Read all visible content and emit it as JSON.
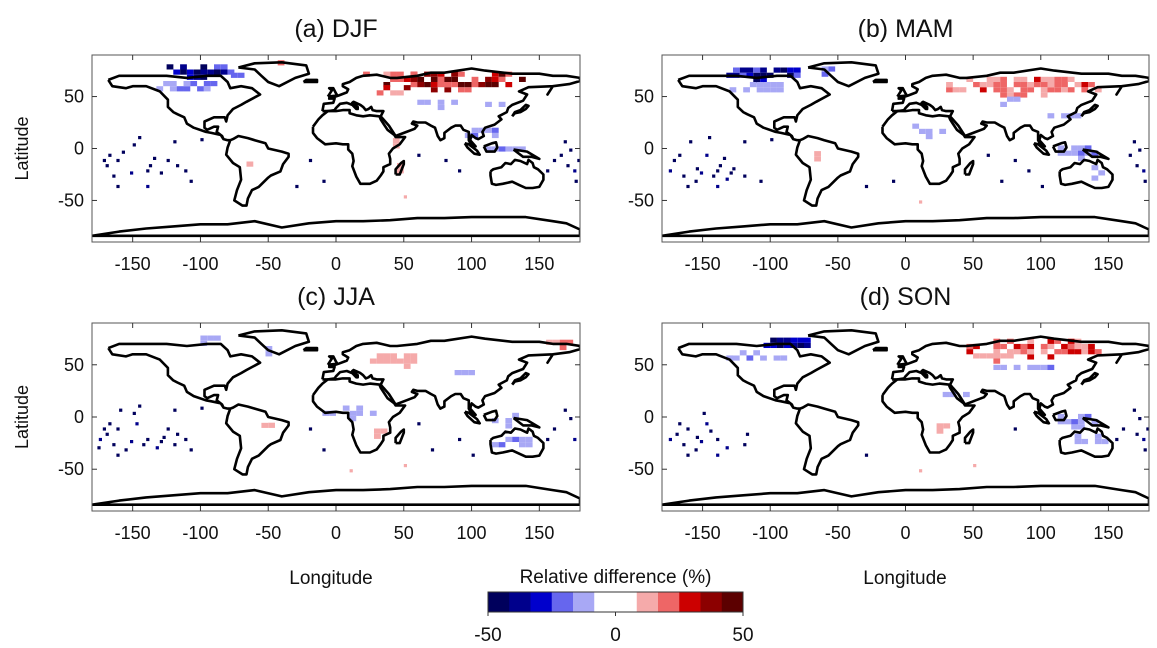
{
  "chart_data": {
    "type": "heatmap",
    "xlabel": "Longitude",
    "ylabel": "Latitude",
    "xlim": [
      -180,
      180
    ],
    "ylim": [
      -90,
      90
    ],
    "x_ticks": [
      -150,
      -100,
      -50,
      0,
      50,
      100,
      150
    ],
    "y_ticks": [
      -50,
      0,
      50
    ],
    "grid": false,
    "colorbar": {
      "title": "Relative difference (%)",
      "tick_labels": [
        "-50",
        "0",
        "50"
      ],
      "range": [
        -50,
        50
      ],
      "bins": 12,
      "colors": [
        "#00005c",
        "#00008c",
        "#0000cc",
        "#6666ee",
        "#a8a8f5",
        "#ffffff",
        "#ffffff",
        "#f5aaaa",
        "#ee6666",
        "#cc0000",
        "#8c0000",
        "#5c0000"
      ]
    },
    "panels": [
      {
        "title": "(a) DJF",
        "show_xlabel": false,
        "show_ylabel": true,
        "anomalies": [
          {
            "lon": -105,
            "lat": 72,
            "w": 60,
            "h": 12,
            "value": -45
          },
          {
            "lon": -75,
            "lat": 67,
            "w": 15,
            "h": 8,
            "value": -25
          },
          {
            "lon": -110,
            "lat": 56,
            "w": 45,
            "h": 12,
            "value": -18
          },
          {
            "lon": -90,
            "lat": 40,
            "w": 22,
            "h": 10,
            "value": -10
          },
          {
            "lon": -42,
            "lat": 78,
            "w": 12,
            "h": 6,
            "value": 25
          },
          {
            "lon": 85,
            "lat": 63,
            "w": 110,
            "h": 18,
            "value": 40
          },
          {
            "lon": 45,
            "lat": 52,
            "w": 30,
            "h": 12,
            "value": 32
          },
          {
            "lon": 40,
            "lat": 68,
            "w": 40,
            "h": 8,
            "value": 20
          },
          {
            "lon": 75,
            "lat": 42,
            "w": 30,
            "h": 10,
            "value": -12
          },
          {
            "lon": 115,
            "lat": 40,
            "w": 20,
            "h": 10,
            "value": -12
          },
          {
            "lon": 105,
            "lat": 12,
            "w": 30,
            "h": 14,
            "value": -15
          },
          {
            "lon": 125,
            "lat": -3,
            "w": 30,
            "h": 10,
            "value": -15
          },
          {
            "lon": 42,
            "lat": 5,
            "w": 10,
            "h": 10,
            "value": 15
          },
          {
            "lon": 45,
            "lat": -20,
            "w": 10,
            "h": 8,
            "value": 12
          },
          {
            "lon": -70,
            "lat": -15,
            "w": 12,
            "h": 15,
            "value": 10
          }
        ]
      },
      {
        "title": "(b) MAM",
        "show_xlabel": false,
        "show_ylabel": false,
        "anomalies": [
          {
            "lon": -105,
            "lat": 70,
            "w": 55,
            "h": 14,
            "value": -40
          },
          {
            "lon": -62,
            "lat": 73,
            "w": 20,
            "h": 8,
            "value": -22
          },
          {
            "lon": -110,
            "lat": 55,
            "w": 40,
            "h": 12,
            "value": -15
          },
          {
            "lon": 85,
            "lat": 58,
            "w": 120,
            "h": 18,
            "value": 22
          },
          {
            "lon": 65,
            "lat": 45,
            "w": 40,
            "h": 10,
            "value": -12
          },
          {
            "lon": 15,
            "lat": 15,
            "w": 30,
            "h": 12,
            "value": -10
          },
          {
            "lon": 115,
            "lat": 25,
            "w": 30,
            "h": 12,
            "value": -12
          },
          {
            "lon": 125,
            "lat": -5,
            "w": 35,
            "h": 14,
            "value": -18
          },
          {
            "lon": 140,
            "lat": -25,
            "w": 25,
            "h": 12,
            "value": -15
          },
          {
            "lon": -70,
            "lat": -10,
            "w": 15,
            "h": 15,
            "value": 10
          }
        ]
      },
      {
        "title": "(c) JJA",
        "show_xlabel": false,
        "show_ylabel": true,
        "anomalies": [
          {
            "lon": -100,
            "lat": 72,
            "w": 30,
            "h": 8,
            "value": -15
          },
          {
            "lon": -50,
            "lat": 62,
            "w": 14,
            "h": 8,
            "value": -18
          },
          {
            "lon": 45,
            "lat": 52,
            "w": 40,
            "h": 12,
            "value": 12
          },
          {
            "lon": 85,
            "lat": 40,
            "w": 35,
            "h": 10,
            "value": -12
          },
          {
            "lon": 10,
            "lat": 2,
            "w": 40,
            "h": 12,
            "value": -10
          },
          {
            "lon": 28,
            "lat": -15,
            "w": 20,
            "h": 12,
            "value": 12
          },
          {
            "lon": 125,
            "lat": -5,
            "w": 30,
            "h": 12,
            "value": -12
          },
          {
            "lon": 130,
            "lat": -28,
            "w": 30,
            "h": 12,
            "value": -15
          },
          {
            "lon": -55,
            "lat": -8,
            "w": 20,
            "h": 15,
            "value": 10
          },
          {
            "lon": 165,
            "lat": 68,
            "w": 20,
            "h": 8,
            "value": 20
          }
        ]
      },
      {
        "title": "(d) SON",
        "show_xlabel": true,
        "show_ylabel": false,
        "anomalies": [
          {
            "lon": -85,
            "lat": 68,
            "w": 40,
            "h": 14,
            "value": -40
          },
          {
            "lon": -110,
            "lat": 55,
            "w": 45,
            "h": 12,
            "value": -15
          },
          {
            "lon": 95,
            "lat": 63,
            "w": 110,
            "h": 16,
            "value": 30
          },
          {
            "lon": 65,
            "lat": 55,
            "w": 30,
            "h": 8,
            "value": 15
          },
          {
            "lon": 85,
            "lat": 45,
            "w": 50,
            "h": 10,
            "value": -15
          },
          {
            "lon": 40,
            "lat": 20,
            "w": 25,
            "h": 12,
            "value": -10
          },
          {
            "lon": 125,
            "lat": -5,
            "w": 35,
            "h": 14,
            "value": -15
          },
          {
            "lon": 135,
            "lat": -25,
            "w": 30,
            "h": 12,
            "value": -12
          },
          {
            "lon": 25,
            "lat": -12,
            "w": 14,
            "h": 8,
            "value": 12
          }
        ]
      }
    ]
  }
}
